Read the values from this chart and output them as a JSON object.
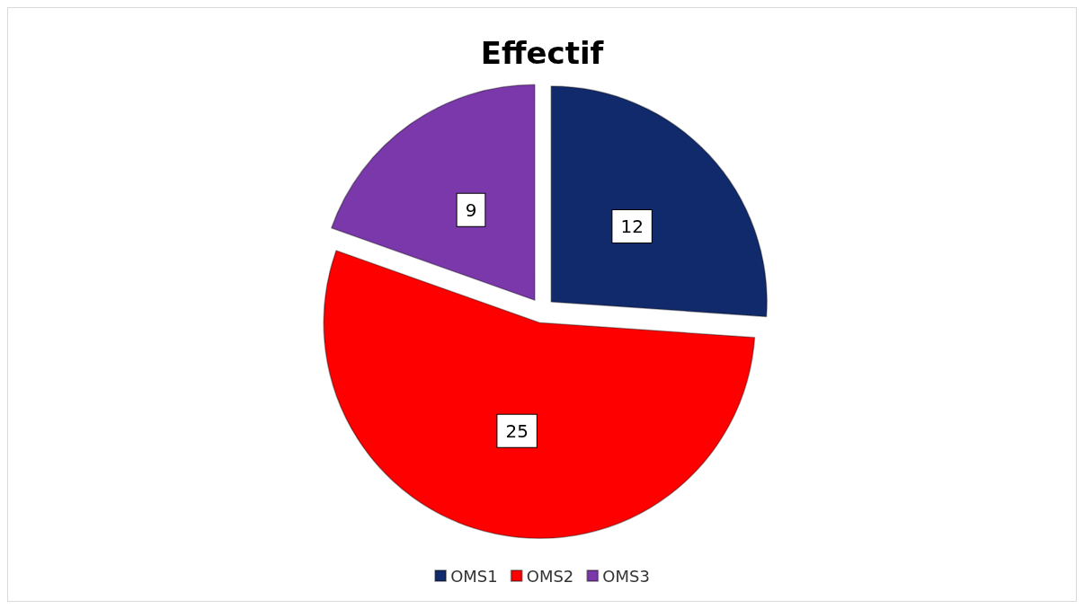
{
  "chart_data": {
    "type": "pie",
    "title": "Effectif",
    "categories": [
      "OMS1",
      "OMS2",
      "OMS3"
    ],
    "values": [
      12,
      25,
      9
    ],
    "colors": [
      "#112a6b",
      "#ff0000",
      "#7b38ab"
    ],
    "data_labels": true,
    "legend": "bottom"
  }
}
